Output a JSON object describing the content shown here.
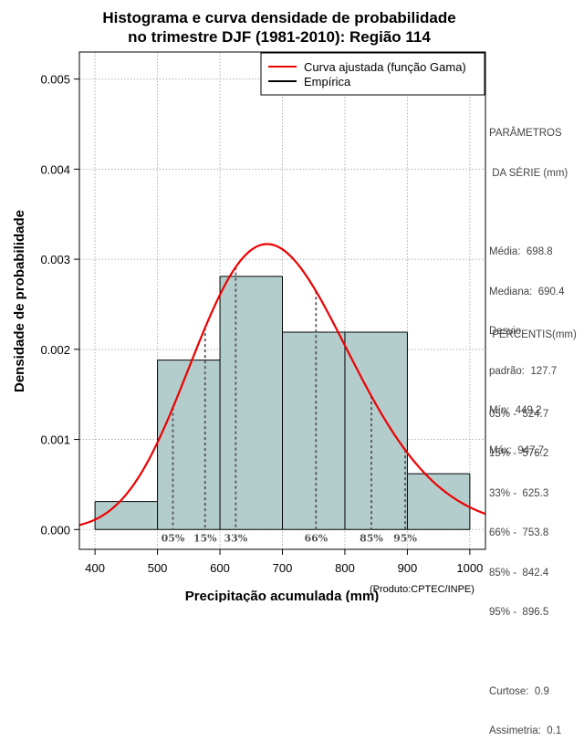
{
  "chart_data": {
    "type": "histogram",
    "title": [
      "Histograma e curva densidade de probabilidade",
      "no trimestre DJF (1981-2010): Região 114"
    ],
    "xlabel": "Precipitação acumulada (mm)",
    "ylabel": "Densidade de probabilidade",
    "xlim": [
      375,
      1025
    ],
    "ylim": [
      -0.00022,
      0.0053
    ],
    "xticks": [
      400,
      500,
      600,
      700,
      800,
      900,
      1000
    ],
    "yticks": [
      0.0,
      0.001,
      0.002,
      0.003,
      0.004,
      0.005
    ],
    "ytick_labels": [
      "0.000",
      "0.001",
      "0.002",
      "0.003",
      "0.004",
      "0.005"
    ],
    "grid": true,
    "bins": [
      {
        "from": 400,
        "to": 500,
        "density": 0.00031
      },
      {
        "from": 500,
        "to": 600,
        "density": 0.00188
      },
      {
        "from": 600,
        "to": 700,
        "density": 0.00281
      },
      {
        "from": 700,
        "to": 800,
        "density": 0.00219
      },
      {
        "from": 800,
        "to": 900,
        "density": 0.00219
      },
      {
        "from": 900,
        "to": 1000,
        "density": 0.00062
      }
    ],
    "bar_color": "#b3cccc",
    "curve": {
      "name": "Curva ajustada (função Gama)",
      "color": "#ee0000",
      "mean": 698.8,
      "sd": 127.7
    },
    "legend": [
      {
        "label": "Curva ajustada (função Gama)",
        "color": "#ee0000"
      },
      {
        "label": "Empírica",
        "color": "#000000"
      }
    ],
    "legend_position": "top-right",
    "percentile_lines": [
      {
        "label": "05%",
        "value": 524.7
      },
      {
        "label": "15%",
        "value": 576.2
      },
      {
        "label": "33%",
        "value": 625.3
      },
      {
        "label": "66%",
        "value": 753.8
      },
      {
        "label": "85%",
        "value": 842.4
      },
      {
        "label": "95%",
        "value": 896.5
      }
    ]
  },
  "side_panel": {
    "params_title_1": "PARÂMETROS",
    "params_title_2": " DA SÉRIE (mm)",
    "media": "Média:  698.8",
    "mediana": "Mediana:  690.4",
    "desvio_1": "Desvio",
    "desvio_2": "padrão:  127.7",
    "min": "Mín:  449.2",
    "max": "Máx:  947.7",
    "percentis_title": " PERCENTIS(mm)",
    "p05": "05% -  524.7",
    "p15": "15% -  576.2",
    "p33": "33% -  625.3",
    "p66": "66% -  753.8",
    "p85": "85% -  842.4",
    "p95": "95% -  896.5",
    "curtose": "Curtose:  0.9",
    "assimetria": "Assimetria:  0.1"
  },
  "credit": "(Produto:CPTEC/INPE)"
}
